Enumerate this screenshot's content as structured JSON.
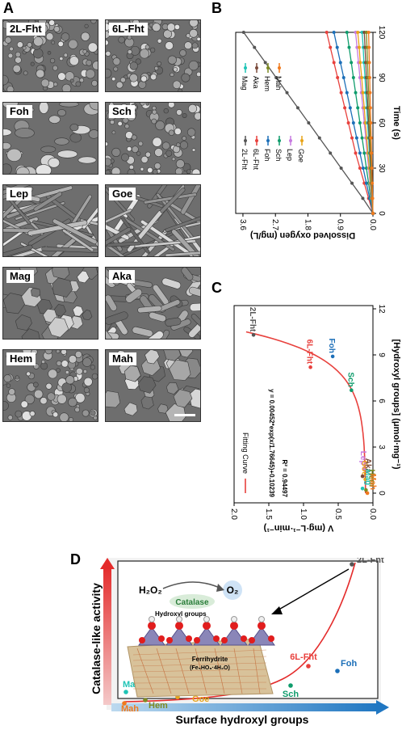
{
  "panels": {
    "A": {
      "letter": "A",
      "images": [
        {
          "label": "2L-Fht",
          "texture": "granular"
        },
        {
          "label": "6L-Fht",
          "texture": "granular"
        },
        {
          "label": "Foh",
          "texture": "flaky"
        },
        {
          "label": "Sch",
          "texture": "granular"
        },
        {
          "label": "Lep",
          "texture": "needle"
        },
        {
          "label": "Goe",
          "texture": "needle"
        },
        {
          "label": "Mag",
          "texture": "crystal"
        },
        {
          "label": "Aka",
          "texture": "rod"
        },
        {
          "label": "Hem",
          "texture": "granular"
        },
        {
          "label": "Mah",
          "texture": "crystal"
        }
      ]
    },
    "B": {
      "letter": "B",
      "xlabel": "Time (s)",
      "ylabel": "Dissolved oxygen (mg/L)",
      "xticks": [
        "0",
        "30",
        "60",
        "90",
        "120"
      ],
      "yticks": [
        "0.0",
        "0.9",
        "1.8",
        "2.7",
        "3.6"
      ],
      "legend": [
        {
          "name": "2L-Fht",
          "color": "#555555"
        },
        {
          "name": "6L-Fht",
          "color": "#e8413d"
        },
        {
          "name": "Foh",
          "color": "#1c6fb8"
        },
        {
          "name": "Sch",
          "color": "#0f9c6c"
        },
        {
          "name": "Lep",
          "color": "#c77ae0"
        },
        {
          "name": "Goe",
          "color": "#e8a419"
        },
        {
          "name": "Mag",
          "color": "#1fc4b6"
        },
        {
          "name": "Aka",
          "color": "#7a4a3a"
        },
        {
          "name": "Hem",
          "color": "#7d8a22"
        },
        {
          "name": "Mah",
          "color": "#f07a1e"
        }
      ]
    },
    "C": {
      "letter": "C",
      "xlabel": "[Hydroxyl groups] (μmol·mg⁻¹)",
      "ylabel": "V (mg·L⁻¹·min⁻¹)",
      "xticks": [
        "0",
        "3",
        "6",
        "9",
        "12"
      ],
      "yticks": [
        "0.0",
        "0.5",
        "1.0",
        "1.5",
        "2.0"
      ],
      "legend": "Fitting Curve",
      "equation": "y = 0.00452*exp(x/1.76645)+0.10239",
      "r2": "R² = 0.94497"
    },
    "D": {
      "letter": "D",
      "ylabel": "Catalase-like activity",
      "xlabel": "Surface hydroxyl groups",
      "h2o2": "H₂O₂",
      "catalase": "Catalase",
      "o2": "O₂",
      "hydroxyl_label": "Hydroxyl groups",
      "ferrihydrite": "Ferrihydrite",
      "formula": "(Fe₅HO₈·4H₂O)"
    }
  },
  "chart_data": [
    {
      "type": "line",
      "panel": "B",
      "x": [
        0,
        10,
        20,
        30,
        40,
        50,
        60,
        70,
        80,
        90,
        100,
        110,
        120
      ],
      "xlim": [
        0,
        120
      ],
      "ylim": [
        0,
        3.8
      ],
      "xlabel": "Time (s)",
      "ylabel": "Dissolved oxygen (mg/L)",
      "series": [
        {
          "name": "2L-Fht",
          "color": "#555555",
          "values": [
            0,
            0.28,
            0.58,
            0.88,
            1.18,
            1.48,
            1.78,
            2.08,
            2.38,
            2.68,
            2.98,
            3.28,
            3.58
          ]
        },
        {
          "name": "6L-Fht",
          "color": "#e8413d",
          "values": [
            0,
            0.12,
            0.24,
            0.36,
            0.48,
            0.58,
            0.68,
            0.78,
            0.88,
            0.98,
            1.08,
            1.18,
            1.28
          ]
        },
        {
          "name": "Foh",
          "color": "#1c6fb8",
          "values": [
            0,
            0.09,
            0.18,
            0.27,
            0.36,
            0.45,
            0.54,
            0.63,
            0.72,
            0.81,
            0.9,
            0.99,
            1.08
          ]
        },
        {
          "name": "Sch",
          "color": "#0f9c6c",
          "values": [
            0,
            0.06,
            0.12,
            0.18,
            0.24,
            0.3,
            0.36,
            0.42,
            0.48,
            0.54,
            0.6,
            0.66,
            0.72
          ]
        },
        {
          "name": "Lep",
          "color": "#c77ae0",
          "values": [
            0,
            0.04,
            0.08,
            0.12,
            0.16,
            0.2,
            0.24,
            0.28,
            0.32,
            0.36,
            0.4,
            0.44,
            0.48
          ]
        },
        {
          "name": "Goe",
          "color": "#e8a419",
          "values": [
            0,
            0.03,
            0.07,
            0.1,
            0.14,
            0.17,
            0.21,
            0.24,
            0.28,
            0.31,
            0.35,
            0.38,
            0.42
          ]
        },
        {
          "name": "Mag",
          "color": "#1fc4b6",
          "values": [
            0,
            0.02,
            0.05,
            0.07,
            0.1,
            0.12,
            0.15,
            0.17,
            0.2,
            0.22,
            0.25,
            0.27,
            0.3
          ]
        },
        {
          "name": "Aka",
          "color": "#7a4a3a",
          "values": [
            0,
            0.02,
            0.04,
            0.06,
            0.08,
            0.1,
            0.12,
            0.14,
            0.16,
            0.18,
            0.2,
            0.22,
            0.24
          ]
        },
        {
          "name": "Hem",
          "color": "#7d8a22",
          "values": [
            0,
            0.015,
            0.03,
            0.045,
            0.06,
            0.075,
            0.09,
            0.105,
            0.12,
            0.135,
            0.15,
            0.165,
            0.18
          ]
        },
        {
          "name": "Mah",
          "color": "#f07a1e",
          "values": [
            0,
            0.01,
            0.02,
            0.03,
            0.04,
            0.05,
            0.06,
            0.07,
            0.08,
            0.09,
            0.1,
            0.11,
            0.12
          ]
        }
      ]
    },
    {
      "type": "scatter",
      "panel": "C",
      "xlim": [
        -1,
        12
      ],
      "ylim": [
        0,
        2.0
      ],
      "points": [
        {
          "name": "2L-Fht",
          "x": 10.3,
          "y": 1.72,
          "color": "#555555"
        },
        {
          "name": "Foh",
          "x": 8.9,
          "y": 0.58,
          "color": "#1c6fb8"
        },
        {
          "name": "6L-Fht",
          "x": 8.2,
          "y": 0.9,
          "color": "#e8413d"
        },
        {
          "name": "Sch",
          "x": 6.7,
          "y": 0.31,
          "color": "#0f9c6c"
        },
        {
          "name": "Lep",
          "x": 1.6,
          "y": 0.13,
          "color": "#c77ae0"
        },
        {
          "name": "Goe",
          "x": 0.9,
          "y": 0.11,
          "color": "#e8a419"
        },
        {
          "name": "Aka",
          "x": 1.1,
          "y": 0.15,
          "color": "#7a4a3a"
        },
        {
          "name": "Mag",
          "x": 0.3,
          "y": 0.15,
          "color": "#1fc4b6"
        },
        {
          "name": "Hem",
          "x": 0.2,
          "y": 0.1,
          "color": "#7d8a22"
        },
        {
          "name": "Mah",
          "x": 0.0,
          "y": 0.08,
          "color": "#f07a1e"
        }
      ],
      "fit": {
        "a": 0.00452,
        "b": 1.76645,
        "c": 0.10239
      }
    }
  ]
}
